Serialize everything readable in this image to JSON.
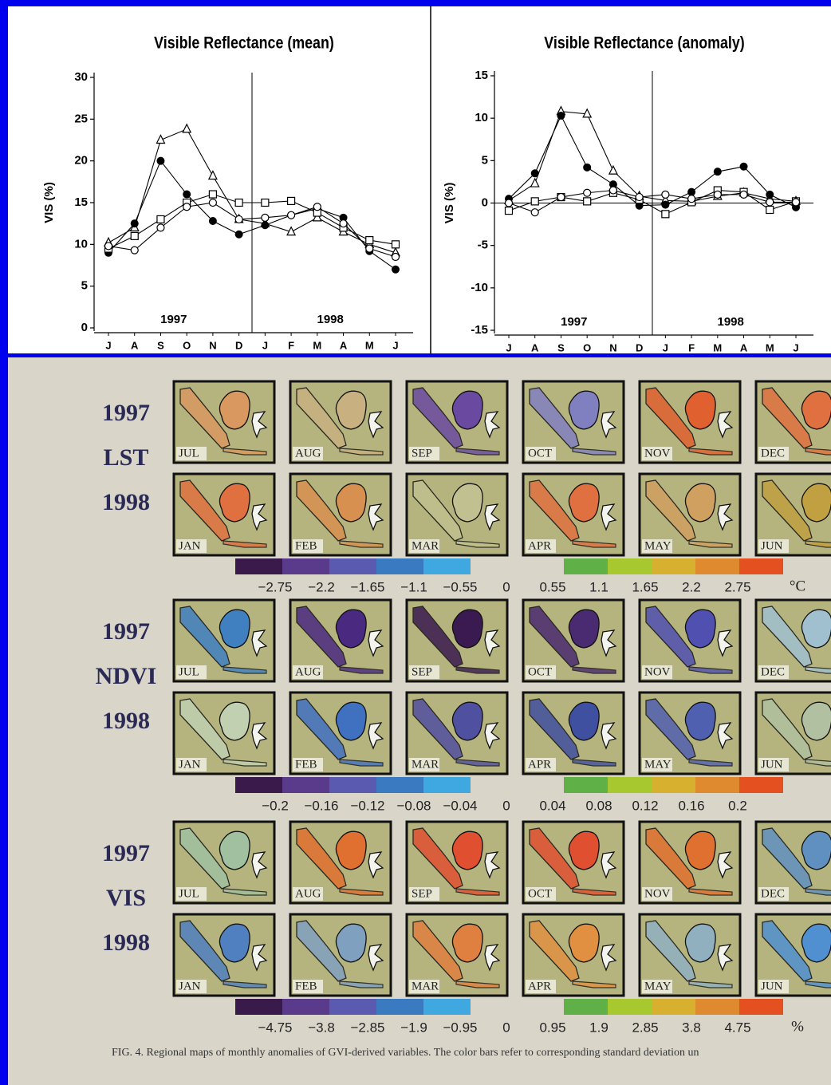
{
  "chart_data": [
    {
      "type": "line",
      "title": "Visible Reflectance (mean)",
      "y_label": "VIS (%)",
      "categories": [
        "J",
        "A",
        "S",
        "O",
        "N",
        "D",
        "J",
        "F",
        "M",
        "A",
        "M",
        "J"
      ],
      "annotations": [
        "1997",
        "1998"
      ],
      "ylim": [
        0,
        30
      ],
      "yticks": [
        0,
        5,
        10,
        15,
        20,
        25,
        30
      ],
      "series": [
        {
          "marker": "triangle",
          "color": "#000000",
          "values": [
            10.2,
            12,
            22.5,
            23.8,
            18.2,
            13,
            12.5,
            11.5,
            13.2,
            11.5,
            10,
            9
          ]
        },
        {
          "marker": "circle-filled",
          "color": "#000000",
          "values": [
            9,
            12.5,
            20,
            16,
            12.8,
            11.2,
            12.3,
            13.5,
            14.3,
            13.2,
            9.2,
            7
          ]
        },
        {
          "marker": "square",
          "color": "#000000",
          "values": [
            9.5,
            11,
            13,
            15,
            16,
            15,
            15,
            15.2,
            13.8,
            12,
            10.5,
            10
          ]
        },
        {
          "marker": "circle",
          "color": "#000000",
          "values": [
            9.8,
            9.3,
            12,
            14.5,
            15,
            13,
            13.2,
            13.5,
            14.5,
            12.5,
            9.5,
            8.5
          ]
        }
      ]
    },
    {
      "type": "line",
      "title": "Visible Reflectance (anomaly)",
      "y_label": "VIS (%)",
      "categories": [
        "J",
        "A",
        "S",
        "O",
        "N",
        "D",
        "J",
        "F",
        "M",
        "A",
        "M",
        "J"
      ],
      "annotations": [
        "1997",
        "1998"
      ],
      "ylim": [
        -15,
        15
      ],
      "yticks": [
        -15,
        -10,
        -5,
        0,
        5,
        10,
        15
      ],
      "series": [
        {
          "marker": "triangle",
          "color": "#000000",
          "values": [
            0.3,
            2.3,
            10.8,
            10.5,
            3.8,
            0.8,
            0.3,
            0.2,
            0.8,
            1.2,
            0.5,
            0.2
          ]
        },
        {
          "marker": "circle-filled",
          "color": "#000000",
          "values": [
            0.5,
            3.5,
            10.3,
            4.2,
            2.2,
            -0.3,
            -0.2,
            1.3,
            3.7,
            4.3,
            1,
            -0.5
          ]
        },
        {
          "marker": "square",
          "color": "#000000",
          "values": [
            -0.9,
            0.2,
            0.7,
            0.2,
            1.2,
            0.4,
            -1.3,
            0.1,
            1.5,
            1.3,
            -0.8,
            0.2
          ]
        },
        {
          "marker": "circle",
          "color": "#000000",
          "values": [
            0,
            -1.1,
            0.7,
            1.2,
            1.5,
            0.7,
            1,
            0.5,
            1,
            1,
            0.1,
            0.1
          ]
        }
      ]
    }
  ],
  "figure": {
    "panels": [
      {
        "labels": [
          "1997",
          "LST",
          "1998"
        ],
        "rows": [
          [
            {
              "month": "JUL",
              "tint": "#d89860"
            },
            {
              "month": "AUG",
              "tint": "#c8b080"
            },
            {
              "month": "SEP",
              "tint": "#6a4aa0"
            },
            {
              "month": "OCT",
              "tint": "#8080c0"
            },
            {
              "month": "NOV",
              "tint": "#e06030"
            },
            {
              "month": "DEC",
              "tint": "#e07040"
            }
          ],
          [
            {
              "month": "JAN",
              "tint": "#e07040"
            },
            {
              "month": "FEB",
              "tint": "#d89050"
            },
            {
              "month": "MAR",
              "tint": "#c0c090"
            },
            {
              "month": "APR",
              "tint": "#e07040"
            },
            {
              "month": "MAY",
              "tint": "#d0a060"
            },
            {
              "month": "JUN",
              "tint": "#c0a040"
            }
          ]
        ],
        "colorbar": {
          "ticks": [
            "−2.75",
            "−2.2",
            "−1.65",
            "−1.1",
            "−0.55",
            "0",
            "0.55",
            "1.1",
            "1.65",
            "2.2",
            "2.75"
          ],
          "unit": "°C"
        }
      },
      {
        "labels": [
          "1997",
          "NDVI",
          "1998"
        ],
        "rows": [
          [
            {
              "month": "JUL",
              "tint": "#4080c0"
            },
            {
              "month": "AUG",
              "tint": "#4a2a80"
            },
            {
              "month": "SEP",
              "tint": "#3a1a50"
            },
            {
              "month": "OCT",
              "tint": "#4a2a70"
            },
            {
              "month": "NOV",
              "tint": "#5050b0"
            },
            {
              "month": "DEC",
              "tint": "#a0c0d0"
            }
          ],
          [
            {
              "month": "JAN",
              "tint": "#c0d0b0"
            },
            {
              "month": "FEB",
              "tint": "#4070c0"
            },
            {
              "month": "MAR",
              "tint": "#5050a0"
            },
            {
              "month": "APR",
              "tint": "#4050a0"
            },
            {
              "month": "MAY",
              "tint": "#5060b0"
            },
            {
              "month": "JUN",
              "tint": "#b0c0a0"
            }
          ]
        ],
        "colorbar": {
          "ticks": [
            "−0.2",
            "−0.16",
            "−0.12",
            "−0.08",
            "−0.04",
            "0",
            "0.04",
            "0.08",
            "0.12",
            "0.16",
            "0.2"
          ]
        }
      },
      {
        "labels": [
          "1997",
          "VIS",
          "1998"
        ],
        "rows": [
          [
            {
              "month": "JUL",
              "tint": "#a0c0a0"
            },
            {
              "month": "AUG",
              "tint": "#e07030"
            },
            {
              "month": "SEP",
              "tint": "#e05030"
            },
            {
              "month": "OCT",
              "tint": "#e05030"
            },
            {
              "month": "NOV",
              "tint": "#e07030"
            },
            {
              "month": "DEC",
              "tint": "#6090c0"
            }
          ],
          [
            {
              "month": "JAN",
              "tint": "#5080c0"
            },
            {
              "month": "FEB",
              "tint": "#80a0c0"
            },
            {
              "month": "MAR",
              "tint": "#e08040"
            },
            {
              "month": "APR",
              "tint": "#e09040"
            },
            {
              "month": "MAY",
              "tint": "#90b0c0"
            },
            {
              "month": "JUN",
              "tint": "#5090d0"
            }
          ]
        ],
        "colorbar": {
          "ticks": [
            "−4.75",
            "−3.8",
            "−2.85",
            "−1.9",
            "−0.95",
            "0",
            "0.95",
            "1.9",
            "2.85",
            "3.8",
            "4.75"
          ],
          "unit": "%"
        }
      }
    ],
    "caption": "FIG. 4. Regional maps of monthly anomalies of GVI-derived variables. The color bars refer to corresponding standard deviation un"
  }
}
